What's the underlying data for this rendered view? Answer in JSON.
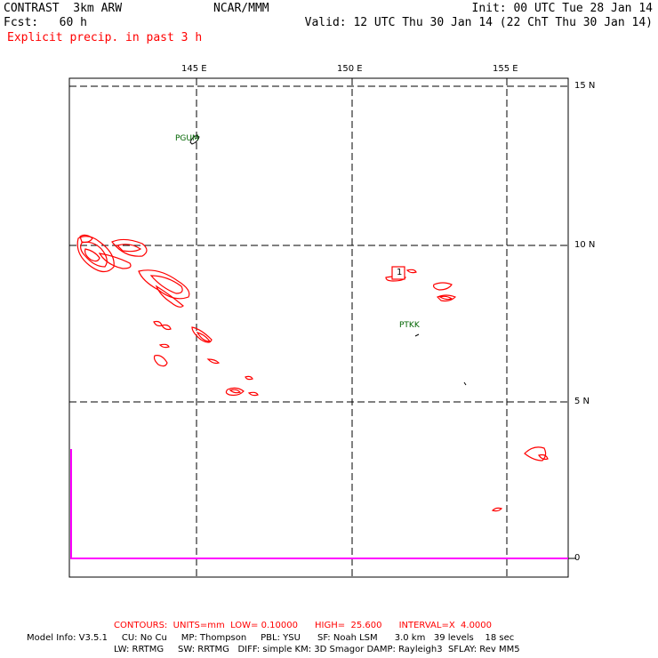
{
  "header": {
    "model": "CONTRAST  3km ARW",
    "forecast": "Fcst:   60 h",
    "org": "NCAR/MMM",
    "init": "Init: 00 UTC Tue 28 Jan 14",
    "valid": "Valid: 12 UTC Thu 30 Jan 14 (22 ChT Thu 30 Jan 14)",
    "field": "Explicit precip. in past 3 h"
  },
  "map": {
    "lon_labels": [
      "145 E",
      "150 E",
      "155 E"
    ],
    "lat_labels": [
      "15 N",
      "10 N",
      "5 N"
    ],
    "bottom_label": "0",
    "stations": [
      "PGUM",
      "PTKK"
    ],
    "contour_label": "1",
    "colors": {
      "precip_contour": "#ff0000",
      "grid": "#000000",
      "station": "#006400",
      "precip_axis": "#ff00ff"
    }
  },
  "footer": {
    "contours": "CONTOURS:  UNITS=mm  LOW= 0.10000      HIGH=  25.600      INTERVAL=X  4.0000",
    "info1": "Model Info: V3.5.1     CU: No Cu     MP: Thompson     PBL: YSU      SF: Noah LSM      3.0 km   39 levels    18 sec",
    "info2": "LW: RRTMG     SW: RRTMG   DIFF: simple KM: 3D Smagor DAMP: Rayleigh3  SFLAY: Rev MM5"
  }
}
